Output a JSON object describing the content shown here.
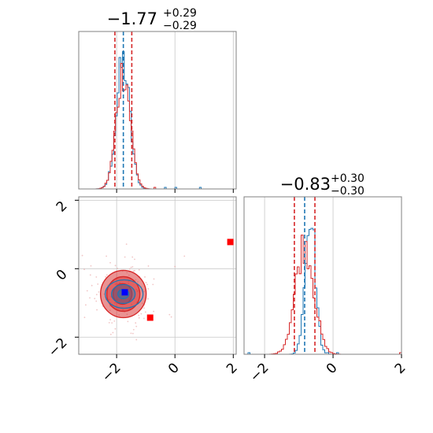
{
  "chart_data": {
    "type": "corner",
    "colors": {
      "red": "#d62728",
      "blue": "#1f77b4",
      "marker_red": "#ff0000",
      "marker_blue": "#0000ff"
    },
    "parameters": [
      {
        "median_text": "−1.77",
        "plus_text": "+0.29",
        "minus_text": "−0.29",
        "median": -1.77,
        "plus": 0.29,
        "minus": 0.29,
        "hist_blue_median": -1.78,
        "hist_sigma": 0.23
      },
      {
        "median_text": "−0.83",
        "plus_text": "+0.30",
        "minus_text": "−0.30",
        "median": -0.83,
        "plus": 0.3,
        "minus": 0.3,
        "hist_blue_median": -0.67,
        "hist_sigma": 0.24
      }
    ],
    "axes": {
      "x1": {
        "lim": [
          -3.3,
          2.1
        ],
        "ticks": [
          -2,
          0,
          2
        ],
        "tick_labels": [
          "−2",
          "0",
          "2"
        ]
      },
      "x2": {
        "lim": [
          -2.6,
          2.0
        ],
        "ticks": [
          -2,
          0,
          2
        ],
        "tick_labels": [
          "−2",
          "0",
          "2"
        ]
      },
      "y2": {
        "lim": [
          -2.5,
          2.1
        ],
        "ticks": [
          -2,
          0,
          2
        ],
        "tick_labels": [
          "−2",
          "0",
          "2"
        ]
      }
    },
    "grid": true,
    "points": {
      "blue_square": {
        "x": -1.72,
        "y": -0.69
      },
      "red_squares": [
        {
          "x": -0.85,
          "y": -1.43
        },
        {
          "x": 1.9,
          "y": 0.78
        }
      ]
    },
    "contour_center": {
      "x": -1.77,
      "y": -0.74
    }
  }
}
